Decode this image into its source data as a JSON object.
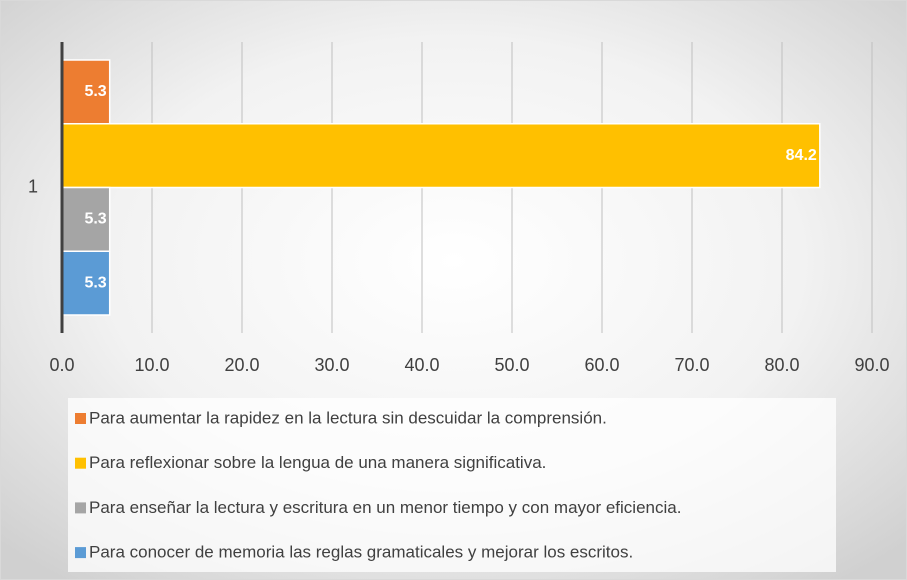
{
  "chart_data": {
    "type": "bar",
    "orientation": "horizontal",
    "categories": [
      "1"
    ],
    "series": [
      {
        "name": "Para aumentar la rapidez en la lectura sin descuidar la comprensión.",
        "color": "#ed7d31",
        "values": [
          5.3
        ]
      },
      {
        "name": "Para reflexionar sobre la lengua de una manera significativa.",
        "color": "#ffc000",
        "values": [
          84.2
        ]
      },
      {
        "name": "Para enseñar la lectura y escritura en un menor tiempo y con mayor eficiencia.",
        "color": "#a5a5a5",
        "values": [
          5.3
        ]
      },
      {
        "name": "Para conocer de memoria las reglas gramaticales y mejorar los escritos.",
        "color": "#5b9bd5",
        "values": [
          5.3
        ]
      }
    ],
    "xlim": [
      0,
      90
    ],
    "xticks": [
      {
        "value": 0,
        "label": "0.0"
      },
      {
        "value": 10,
        "label": "10.0"
      },
      {
        "value": 20,
        "label": "20.0"
      },
      {
        "value": 30,
        "label": "30.0"
      },
      {
        "value": 40,
        "label": "40.0"
      },
      {
        "value": 50,
        "label": "50.0"
      },
      {
        "value": 60,
        "label": "60.0"
      },
      {
        "value": 70,
        "label": "70.0"
      },
      {
        "value": 80,
        "label": "80.0"
      },
      {
        "value": 90,
        "label": "90.0"
      }
    ],
    "grid": true,
    "legend": "bottom"
  }
}
